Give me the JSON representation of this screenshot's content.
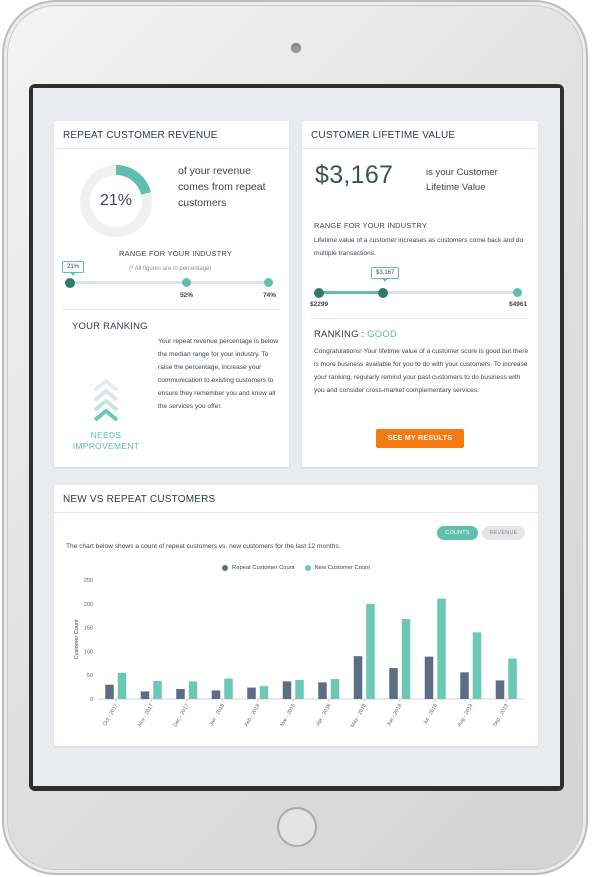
{
  "colors": {
    "accent": "#5fbfae",
    "accent_dark": "#2d7b6e",
    "repeat_series": "#5a6f85",
    "new_series": "#6cc8b6",
    "button_orange": "#f47a12"
  },
  "repeat_revenue": {
    "title": "REPEAT CUSTOMER REVENUE",
    "percent_value": 21,
    "percent_label": "21%",
    "description": "of your revenue comes from repeat customers",
    "range_heading": "RANGE FOR YOUR INDUSTRY",
    "range_note": "(* All figures are in percentage)",
    "marker_label": "21%",
    "marker_value": 21,
    "range_low_label": "52%",
    "range_high_label": "74%",
    "ranking_heading": "YOUR RANKING",
    "ranking_icon": "chevrons-up-icon",
    "ranking_status": "NEEDS IMPROVEMENT",
    "ranking_text": "Your repeat revenue percentage is below the median range for your industry. To raise the percentage, increase your communication to existing customers to ensure they remember you and know all the services you offer."
  },
  "clv": {
    "title": "CUSTOMER LIFETIME VALUE",
    "amount": "$3,167",
    "amount_desc": "is your Customer Lifetime Value",
    "range_heading": "RANGE FOR YOUR INDUSTRY",
    "range_desc": "Lifetime value of a customer increases as customers come back and do multiple transactions.",
    "marker_label": "$3,167",
    "range_min_label": "$2299",
    "range_max_label": "$4961",
    "range_min": 2299,
    "range_max": 4961,
    "marker_value": 3167,
    "ranking_prefix": "RANKING : ",
    "ranking_value": "GOOD",
    "ranking_text": "Congratulations! Your lifetime value of a customer score is good but there is more business available for you to do with your customers. To increase your ranking, regularly remind your past customers to do business with you and consider cross-market complementary services.",
    "button_label": "SEE MY RESULTS"
  },
  "new_vs_repeat": {
    "title": "NEW VS REPEAT CUSTOMERS",
    "toggle_counts": "COUNTS",
    "toggle_revenue": "REVENUE",
    "description": "The chart below shows a count of repeat customers vs. new customers for the last 12 months."
  },
  "chart_data": {
    "type": "bar",
    "categories": [
      "Oct - 2017",
      "Nov - 2017",
      "Dec - 2017",
      "Jan - 2018",
      "Feb - 2018",
      "Mar - 2018",
      "Apr - 2018",
      "May - 2018",
      "Jun - 2018",
      "Jul - 2018",
      "Aug - 2018",
      "Sep - 2018"
    ],
    "series": [
      {
        "name": "Repeat Customer Count",
        "values": [
          30,
          16,
          21,
          18,
          24,
          37,
          35,
          90,
          65,
          89,
          56,
          39
        ]
      },
      {
        "name": "New Customer Count",
        "values": [
          55,
          38,
          37,
          43,
          27,
          40,
          42,
          200,
          168,
          211,
          140,
          85
        ]
      }
    ],
    "ylabel": "Customer Count",
    "xlabel": "",
    "ylim": [
      0,
      250
    ],
    "yticks": [
      0,
      50,
      100,
      150,
      200,
      250
    ],
    "legend": "top-center",
    "grid": false
  }
}
